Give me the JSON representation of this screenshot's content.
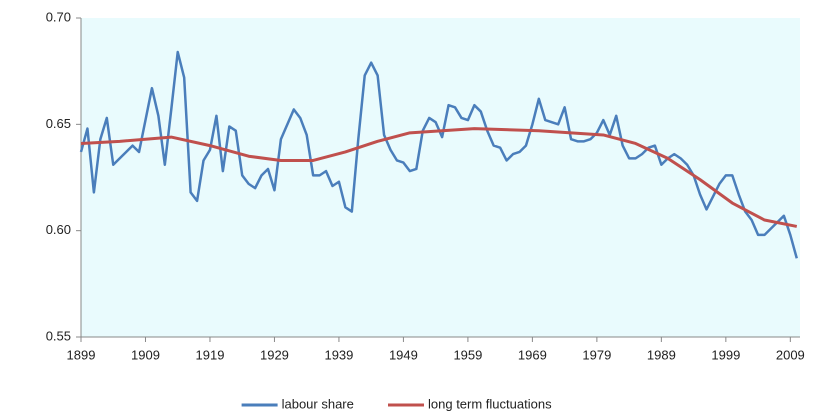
{
  "chart_data": {
    "type": "line",
    "x": [
      1899,
      1900,
      1901,
      1902,
      1903,
      1904,
      1905,
      1906,
      1907,
      1908,
      1909,
      1910,
      1911,
      1912,
      1913,
      1914,
      1915,
      1916,
      1917,
      1918,
      1919,
      1920,
      1921,
      1922,
      1923,
      1924,
      1925,
      1926,
      1927,
      1928,
      1929,
      1930,
      1931,
      1932,
      1933,
      1934,
      1935,
      1936,
      1937,
      1938,
      1939,
      1940,
      1941,
      1942,
      1943,
      1944,
      1945,
      1946,
      1947,
      1948,
      1949,
      1950,
      1951,
      1952,
      1953,
      1954,
      1955,
      1956,
      1957,
      1958,
      1959,
      1960,
      1961,
      1962,
      1963,
      1964,
      1965,
      1966,
      1967,
      1968,
      1969,
      1970,
      1971,
      1972,
      1973,
      1974,
      1975,
      1976,
      1977,
      1978,
      1979,
      1980,
      1981,
      1982,
      1983,
      1984,
      1985,
      1986,
      1987,
      1988,
      1989,
      1990,
      1991,
      1992,
      1993,
      1994,
      1995,
      1996,
      1997,
      1998,
      1999,
      2000,
      2001,
      2002,
      2003,
      2004,
      2005,
      2006,
      2007,
      2008,
      2009,
      2010
    ],
    "series": [
      {
        "name": "labour share",
        "color": "#4a7ebb",
        "values": [
          0.637,
          0.648,
          0.618,
          0.643,
          0.653,
          0.631,
          0.634,
          0.637,
          0.64,
          0.637,
          0.652,
          0.667,
          0.654,
          0.631,
          0.657,
          0.684,
          0.672,
          0.618,
          0.614,
          0.633,
          0.638,
          0.654,
          0.628,
          0.649,
          0.647,
          0.626,
          0.622,
          0.62,
          0.626,
          0.629,
          0.619,
          0.643,
          0.65,
          0.657,
          0.653,
          0.645,
          0.626,
          0.626,
          0.628,
          0.621,
          0.623,
          0.611,
          0.609,
          0.643,
          0.673,
          0.679,
          0.673,
          0.645,
          0.638,
          0.633,
          0.632,
          0.628,
          0.629,
          0.647,
          0.653,
          0.651,
          0.644,
          0.659,
          0.658,
          0.653,
          0.652,
          0.659,
          0.656,
          0.647,
          0.64,
          0.639,
          0.633,
          0.636,
          0.637,
          0.64,
          0.65,
          0.662,
          0.652,
          0.651,
          0.65,
          0.658,
          0.643,
          0.642,
          0.642,
          0.643,
          0.646,
          0.652,
          0.645,
          0.654,
          0.64,
          0.634,
          0.634,
          0.636,
          0.639,
          0.64,
          0.631,
          0.634,
          0.636,
          0.634,
          0.631,
          0.626,
          0.617,
          0.61,
          0.616,
          0.622,
          0.626,
          0.626,
          0.617,
          0.609,
          0.605,
          0.598,
          0.598,
          0.601,
          0.604,
          0.607,
          0.598,
          0.587
        ]
      },
      {
        "name": "long term fluctuations",
        "color": "#c0504d",
        "x": [
          1899,
          1905,
          1913,
          1919,
          1925,
          1930,
          1935,
          1940,
          1945,
          1950,
          1955,
          1960,
          1970,
          1980,
          1985,
          1990,
          1995,
          2000,
          2005,
          2010
        ],
        "values": [
          0.641,
          0.642,
          0.644,
          0.64,
          0.635,
          0.633,
          0.633,
          0.637,
          0.642,
          0.646,
          0.647,
          0.648,
          0.647,
          0.645,
          0.641,
          0.634,
          0.624,
          0.613,
          0.605,
          0.602
        ]
      }
    ],
    "xlim": [
      1899,
      2010.5
    ],
    "xticks": [
      1899,
      1909,
      1919,
      1929,
      1939,
      1949,
      1959,
      1969,
      1979,
      1989,
      1999,
      2009
    ],
    "ylim": [
      0.55,
      0.7
    ],
    "yticks": [
      {
        "value": 0.55,
        "label": "0.55"
      },
      {
        "value": 0.6,
        "label": "0.60"
      },
      {
        "value": 0.65,
        "label": "0.65"
      },
      {
        "value": 0.7,
        "label": "0.70"
      }
    ],
    "legend": "bottom"
  }
}
